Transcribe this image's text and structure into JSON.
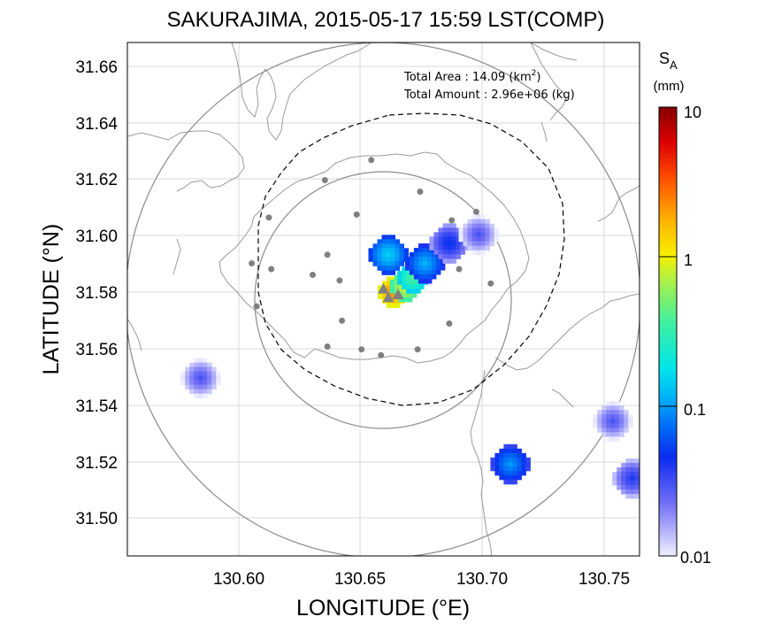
{
  "title": "SAKURAJIMA, 2015-05-17 15:59 LST(COMP)",
  "xlabel": "LONGITUDE (°E)",
  "ylabel": "LATITUDE (°N)",
  "x_ticks": [
    "130.60",
    "130.65",
    "130.70",
    "130.75"
  ],
  "y_ticks": [
    "31.66",
    "31.64",
    "31.62",
    "31.60",
    "31.58",
    "31.56",
    "31.54",
    "31.52",
    "31.50"
  ],
  "info": {
    "area_label": "Total Area   : 14.09 (km",
    "area_sup": "2",
    "area_close": ")",
    "amount_label": "Total Amount : 2.96e+06 (kg)"
  },
  "colorbar": {
    "symbol": "S",
    "subscript": "A",
    "unit": "(mm)",
    "ticks": [
      "10",
      "1",
      "0.1",
      "0.01"
    ],
    "scale": "log"
  },
  "colors": {
    "grid": "#d9d9d9",
    "coast": "#9a9a9a",
    "rings": "#8c8c8c",
    "stations": "#808080",
    "dashed": "#000000"
  },
  "map_data": {
    "lon_range": [
      130.553,
      130.763
    ],
    "lat_range": [
      31.488,
      31.667
    ],
    "stations": [
      [
        130.653,
        31.626
      ],
      [
        130.634,
        31.619
      ],
      [
        130.673,
        31.615
      ],
      [
        130.611,
        31.606
      ],
      [
        130.647,
        31.607
      ],
      [
        130.686,
        31.605
      ],
      [
        130.696,
        31.608
      ],
      [
        130.604,
        31.59
      ],
      [
        130.612,
        31.588
      ],
      [
        130.635,
        31.593
      ],
      [
        130.629,
        31.586
      ],
      [
        130.64,
        31.584
      ],
      [
        130.689,
        31.588
      ],
      [
        130.702,
        31.583
      ],
      [
        130.606,
        31.575
      ],
      [
        130.641,
        31.57
      ],
      [
        130.685,
        31.569
      ],
      [
        130.635,
        31.561
      ],
      [
        130.649,
        31.56
      ],
      [
        130.657,
        31.558
      ],
      [
        130.672,
        31.56
      ]
    ],
    "vents": [
      [
        130.658,
        31.581
      ],
      [
        130.66,
        31.578
      ],
      [
        130.664,
        31.579
      ]
    ],
    "echo_cells": [
      {
        "lon": 130.662,
        "lat": 31.58,
        "sa": 2.5
      },
      {
        "lon": 130.667,
        "lat": 31.582,
        "sa": 0.9
      },
      {
        "lon": 130.67,
        "lat": 31.585,
        "sa": 0.4
      },
      {
        "lon": 130.675,
        "lat": 31.59,
        "sa": 0.12
      },
      {
        "lon": 130.66,
        "lat": 31.593,
        "sa": 0.15
      },
      {
        "lon": 130.685,
        "lat": 31.597,
        "sa": 0.05
      },
      {
        "lon": 130.697,
        "lat": 31.6,
        "sa": 0.03
      },
      {
        "lon": 130.752,
        "lat": 31.535,
        "sa": 0.03
      },
      {
        "lon": 130.76,
        "lat": 31.515,
        "sa": 0.04
      },
      {
        "lon": 130.71,
        "lat": 31.52,
        "sa": 0.1
      },
      {
        "lon": 130.583,
        "lat": 31.55,
        "sa": 0.03
      }
    ]
  }
}
